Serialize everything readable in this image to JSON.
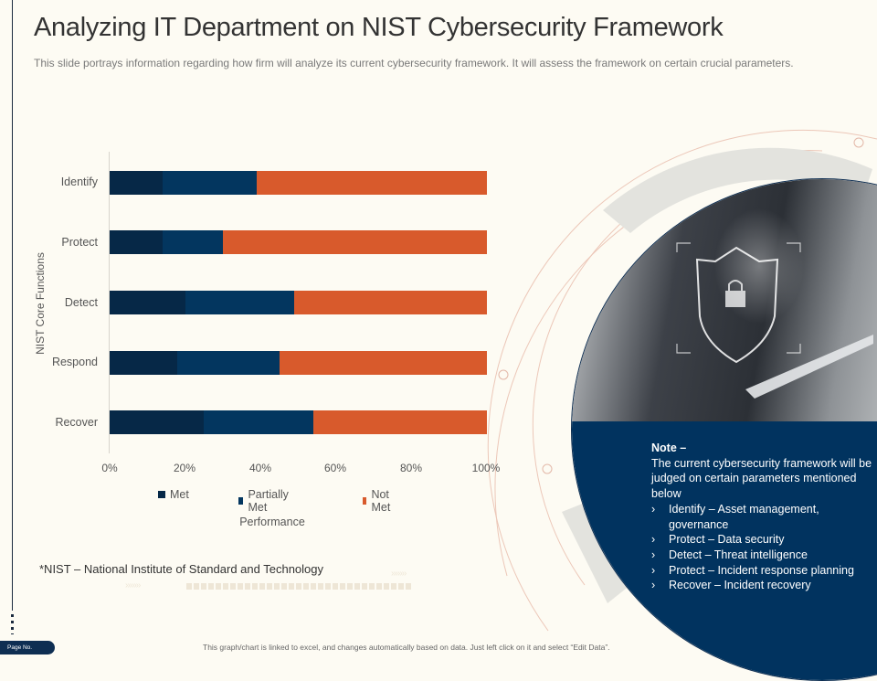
{
  "slide": {
    "title": "Analyzing IT Department on NIST Cybersecurity Framework",
    "subtitle": "This slide portrays information regarding how firm will analyze its current cybersecurity framework. It will assess the framework on certain crucial parameters.",
    "footnote": "*NIST – National Institute of Standard and Technology",
    "page_label": "Page No.",
    "bottom_note": "This graph/chart is linked to excel, and changes automatically based on data. Just left click on it and select “Edit Data”.",
    "chevrons_a": "›››››››",
    "chevrons_b": "›››››››"
  },
  "note": {
    "heading": "Note –",
    "body": "The current cybersecurity framework will be judged on certain parameters mentioned below",
    "bullet_glyph": "›",
    "items": [
      "Identify – Asset management, governance",
      "Protect – Data security",
      "Detect – Threat intelligence",
      "Protect – Incident response planning",
      "Recover – Incident recovery"
    ]
  },
  "colors": {
    "met": "#062847",
    "partially_met": "#03365f",
    "not_met": "#d85a2c",
    "navy_panel": "#01335f",
    "background": "#fdfbf3"
  },
  "chart_data": {
    "type": "bar",
    "orientation": "horizontal",
    "stacked": "percent",
    "title": "",
    "xlabel": "Performance",
    "ylabel": "NIST Core Functions",
    "categories": [
      "Identify",
      "Protect",
      "Detect",
      "Respond",
      "Recover"
    ],
    "series": [
      {
        "name": "Met",
        "values": [
          14,
          14,
          20,
          18,
          25
        ]
      },
      {
        "name": "Partially Met",
        "values": [
          25,
          16,
          29,
          27,
          29
        ]
      },
      {
        "name": "Not Met",
        "values": [
          61,
          70,
          51,
          55,
          46
        ]
      }
    ],
    "xticks": [
      "0%",
      "20%",
      "40%",
      "60%",
      "80%",
      "100%"
    ],
    "xlim": [
      0,
      100
    ],
    "grid": false,
    "legend_position": "bottom"
  }
}
